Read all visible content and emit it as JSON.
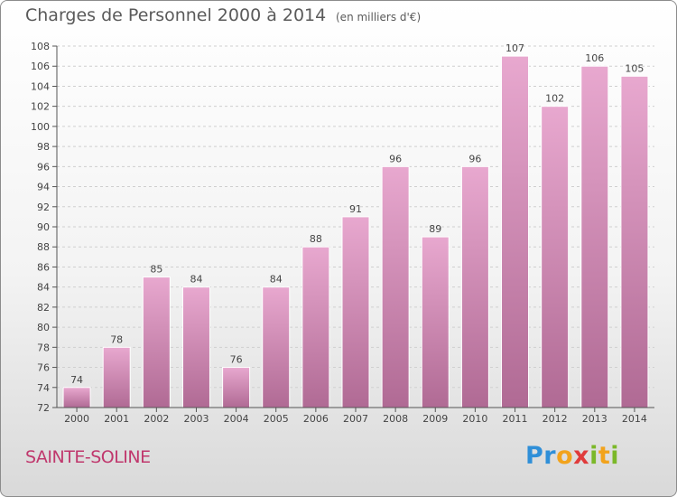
{
  "header": {
    "title": "Charges de Personnel 2000 à 2014",
    "subtitle": "(en milliers d'€)"
  },
  "footer": {
    "commune": "SAINTE-SOLINE",
    "logo_text": "Proxiti"
  },
  "colors": {
    "bar_top": "#e8a8cf",
    "bar_bottom": "#b06a94",
    "grid": "#cfcfcf",
    "axis": "#555555",
    "commune_text": "#c0386d"
  },
  "chart_data": {
    "type": "bar",
    "title": "Charges de Personnel 2000 à 2014",
    "subtitle": "(en milliers d'€)",
    "categories": [
      "2000",
      "2001",
      "2002",
      "2003",
      "2004",
      "2005",
      "2006",
      "2007",
      "2008",
      "2009",
      "2010",
      "2011",
      "2012",
      "2013",
      "2014"
    ],
    "values": [
      74,
      78,
      85,
      84,
      76,
      84,
      88,
      91,
      96,
      89,
      96,
      107,
      102,
      106,
      105
    ],
    "ylim": [
      72,
      108
    ],
    "ytick_step": 2,
    "grid": true,
    "xlabel": "",
    "ylabel": ""
  }
}
